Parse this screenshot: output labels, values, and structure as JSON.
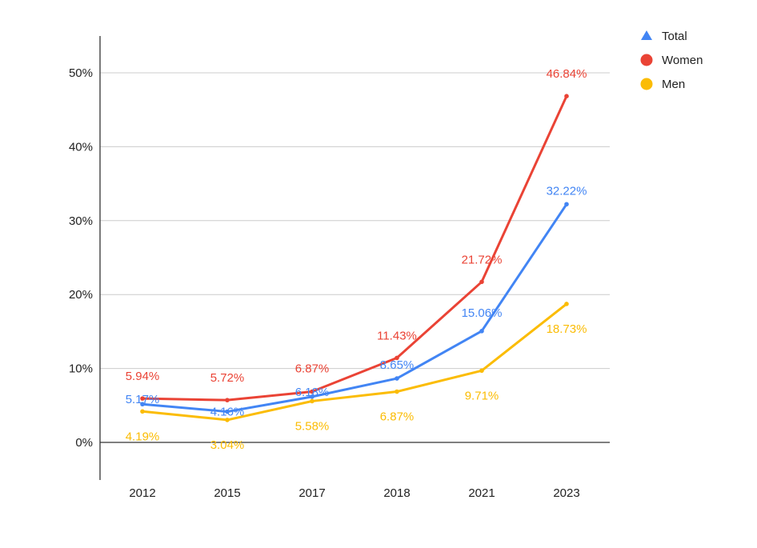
{
  "chart_data": {
    "type": "line",
    "title": "",
    "xlabel": "",
    "ylabel": "",
    "categories": [
      "2012",
      "2015",
      "2017",
      "2018",
      "2021",
      "2023"
    ],
    "y_ticks": [
      "0%",
      "10%",
      "20%",
      "30%",
      "40%",
      "50%"
    ],
    "ylim": [
      -5,
      55
    ],
    "grid": true,
    "legend_position": "top-right",
    "series": [
      {
        "name": "Total",
        "marker": "triangle",
        "color": "#4285f4",
        "values": [
          5.17,
          4.16,
          6.18,
          8.65,
          15.06,
          32.22
        ],
        "labels": [
          "5.17%",
          "4.16%",
          "6.18%",
          "8.65%",
          "15.06%",
          "32.22%"
        ]
      },
      {
        "name": "Women",
        "marker": "circle",
        "color": "#ea4335",
        "values": [
          5.94,
          5.72,
          6.87,
          11.43,
          21.72,
          46.84
        ],
        "labels": [
          "5.94%",
          "5.72%",
          "6.87%",
          "11.43%",
          "21.72%",
          "46.84%"
        ]
      },
      {
        "name": "Men",
        "marker": "circle",
        "color": "#fbbc04",
        "values": [
          4.19,
          3.04,
          5.58,
          6.87,
          9.71,
          18.73
        ],
        "labels": [
          "4.19%",
          "3.04%",
          "5.58%",
          "6.87%",
          "9.71%",
          "18.73%"
        ]
      }
    ]
  }
}
